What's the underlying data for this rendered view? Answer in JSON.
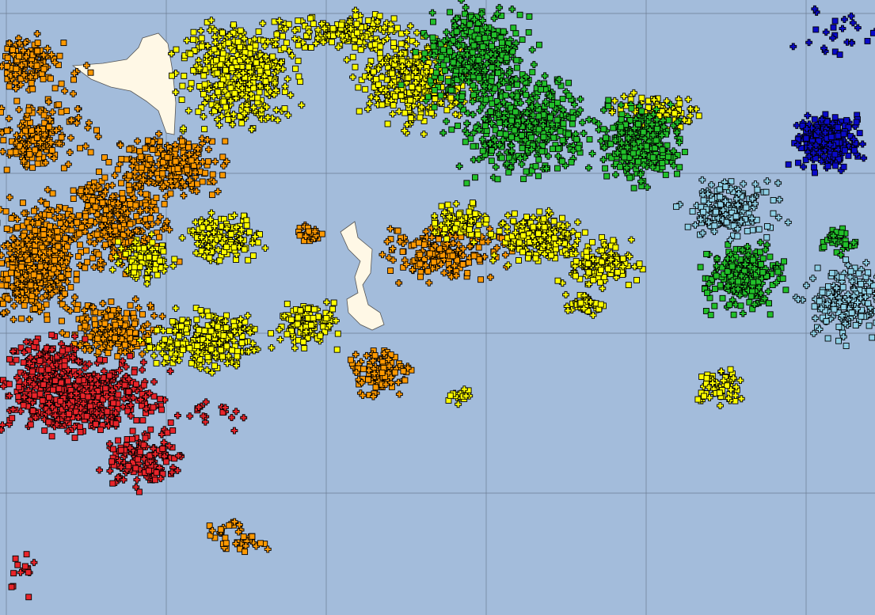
{
  "map": {
    "ocean_color": "#a3bcdb",
    "land_color": "#fff8e6",
    "grid_color": "#6b7d93",
    "marker_outline": "#000000",
    "marker_shapes": [
      "square",
      "plus"
    ],
    "groups": [
      {
        "id": "red",
        "color": "#e8242a"
      },
      {
        "id": "orange",
        "color": "#ff9900"
      },
      {
        "id": "yellow",
        "color": "#ffff00"
      },
      {
        "id": "green",
        "color": "#22c02a"
      },
      {
        "id": "light-blue",
        "color": "#8fd0e6"
      },
      {
        "id": "dark-blue",
        "color": "#0a0ac8"
      }
    ]
  }
}
